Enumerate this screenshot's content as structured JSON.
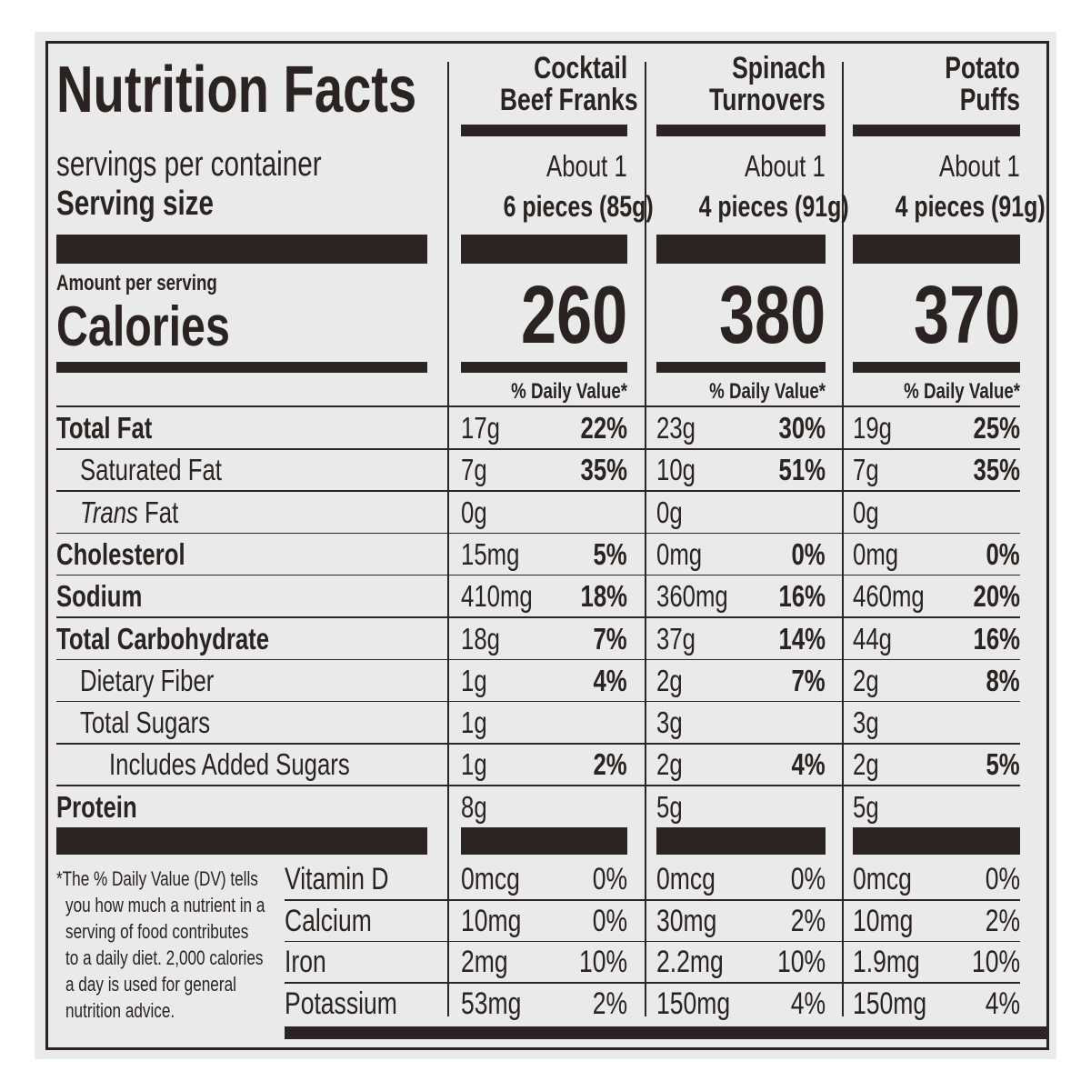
{
  "title": "Nutrition Facts",
  "servings_label": "servings per container",
  "serving_size_label": "Serving size",
  "amount_per_serving": "Amount per serving",
  "calories_label": "Calories",
  "dv_header": "% Daily Value*",
  "products": [
    {
      "name_line1": "Cocktail",
      "name_line2": "Beef Franks",
      "servings": "About 1",
      "serving_size": "6 pieces (85g)",
      "calories": "260"
    },
    {
      "name_line1": "Spinach",
      "name_line2": "Turnovers",
      "servings": "About 1",
      "serving_size": "4 pieces (91g)",
      "calories": "380"
    },
    {
      "name_line1": "Potato",
      "name_line2": "Puffs",
      "servings": "About 1",
      "serving_size": "4 pieces (91g)",
      "calories": "370"
    }
  ],
  "nutrients": [
    {
      "label": "Total Fat",
      "bold": true,
      "indent": 0,
      "values": [
        [
          "17g",
          "22%"
        ],
        [
          "23g",
          "30%"
        ],
        [
          "19g",
          "25%"
        ]
      ]
    },
    {
      "label": "Saturated Fat",
      "bold": false,
      "indent": 1,
      "values": [
        [
          "7g",
          "35%"
        ],
        [
          "10g",
          "51%"
        ],
        [
          "7g",
          "35%"
        ]
      ]
    },
    {
      "label_italic": "Trans",
      "label": " Fat",
      "bold": false,
      "indent": 1,
      "values": [
        [
          "0g",
          ""
        ],
        [
          "0g",
          ""
        ],
        [
          "0g",
          ""
        ]
      ]
    },
    {
      "label": "Cholesterol",
      "bold": true,
      "indent": 0,
      "values": [
        [
          "15mg",
          "5%"
        ],
        [
          "0mg",
          "0%"
        ],
        [
          "0mg",
          "0%"
        ]
      ]
    },
    {
      "label": "Sodium",
      "bold": true,
      "indent": 0,
      "values": [
        [
          "410mg",
          "18%"
        ],
        [
          "360mg",
          "16%"
        ],
        [
          "460mg",
          "20%"
        ]
      ]
    },
    {
      "label": "Total Carbohydrate",
      "bold": true,
      "indent": 0,
      "values": [
        [
          "18g",
          "7%"
        ],
        [
          "37g",
          "14%"
        ],
        [
          "44g",
          "16%"
        ]
      ]
    },
    {
      "label": "Dietary Fiber",
      "bold": false,
      "indent": 1,
      "values": [
        [
          "1g",
          "4%"
        ],
        [
          "2g",
          "7%"
        ],
        [
          "2g",
          "8%"
        ]
      ]
    },
    {
      "label": "Total Sugars",
      "bold": false,
      "indent": 1,
      "values": [
        [
          "1g",
          ""
        ],
        [
          "3g",
          ""
        ],
        [
          "3g",
          ""
        ]
      ]
    },
    {
      "label": "Includes Added Sugars",
      "bold": false,
      "indent": 2,
      "values": [
        [
          "1g",
          "2%"
        ],
        [
          "2g",
          "4%"
        ],
        [
          "2g",
          "5%"
        ]
      ]
    },
    {
      "label": "Protein",
      "bold": true,
      "indent": 0,
      "values": [
        [
          "8g",
          ""
        ],
        [
          "5g",
          ""
        ],
        [
          "5g",
          ""
        ]
      ]
    }
  ],
  "vitamins": [
    {
      "label": "Vitamin D",
      "values": [
        [
          "0mcg",
          "0%"
        ],
        [
          "0mcg",
          "0%"
        ],
        [
          "0mcg",
          "0%"
        ]
      ]
    },
    {
      "label": "Calcium",
      "values": [
        [
          "10mg",
          "0%"
        ],
        [
          "30mg",
          "2%"
        ],
        [
          "10mg",
          "2%"
        ]
      ]
    },
    {
      "label": "Iron",
      "values": [
        [
          "2mg",
          "10%"
        ],
        [
          "2.2mg",
          "10%"
        ],
        [
          "1.9mg",
          "10%"
        ]
      ]
    },
    {
      "label": "Potassium",
      "values": [
        [
          "53mg",
          "2%"
        ],
        [
          "150mg",
          "4%"
        ],
        [
          "150mg",
          "4%"
        ]
      ]
    }
  ],
  "footnote": [
    "*The % Daily Value (DV) tells",
    "you how much a nutrient in a",
    "serving of food contributes",
    "to a daily diet. 2,000 calories",
    "a day is used for general",
    "nutrition advice."
  ],
  "colors": {
    "ink": "#2b2422",
    "panel": "#e9eae9"
  }
}
